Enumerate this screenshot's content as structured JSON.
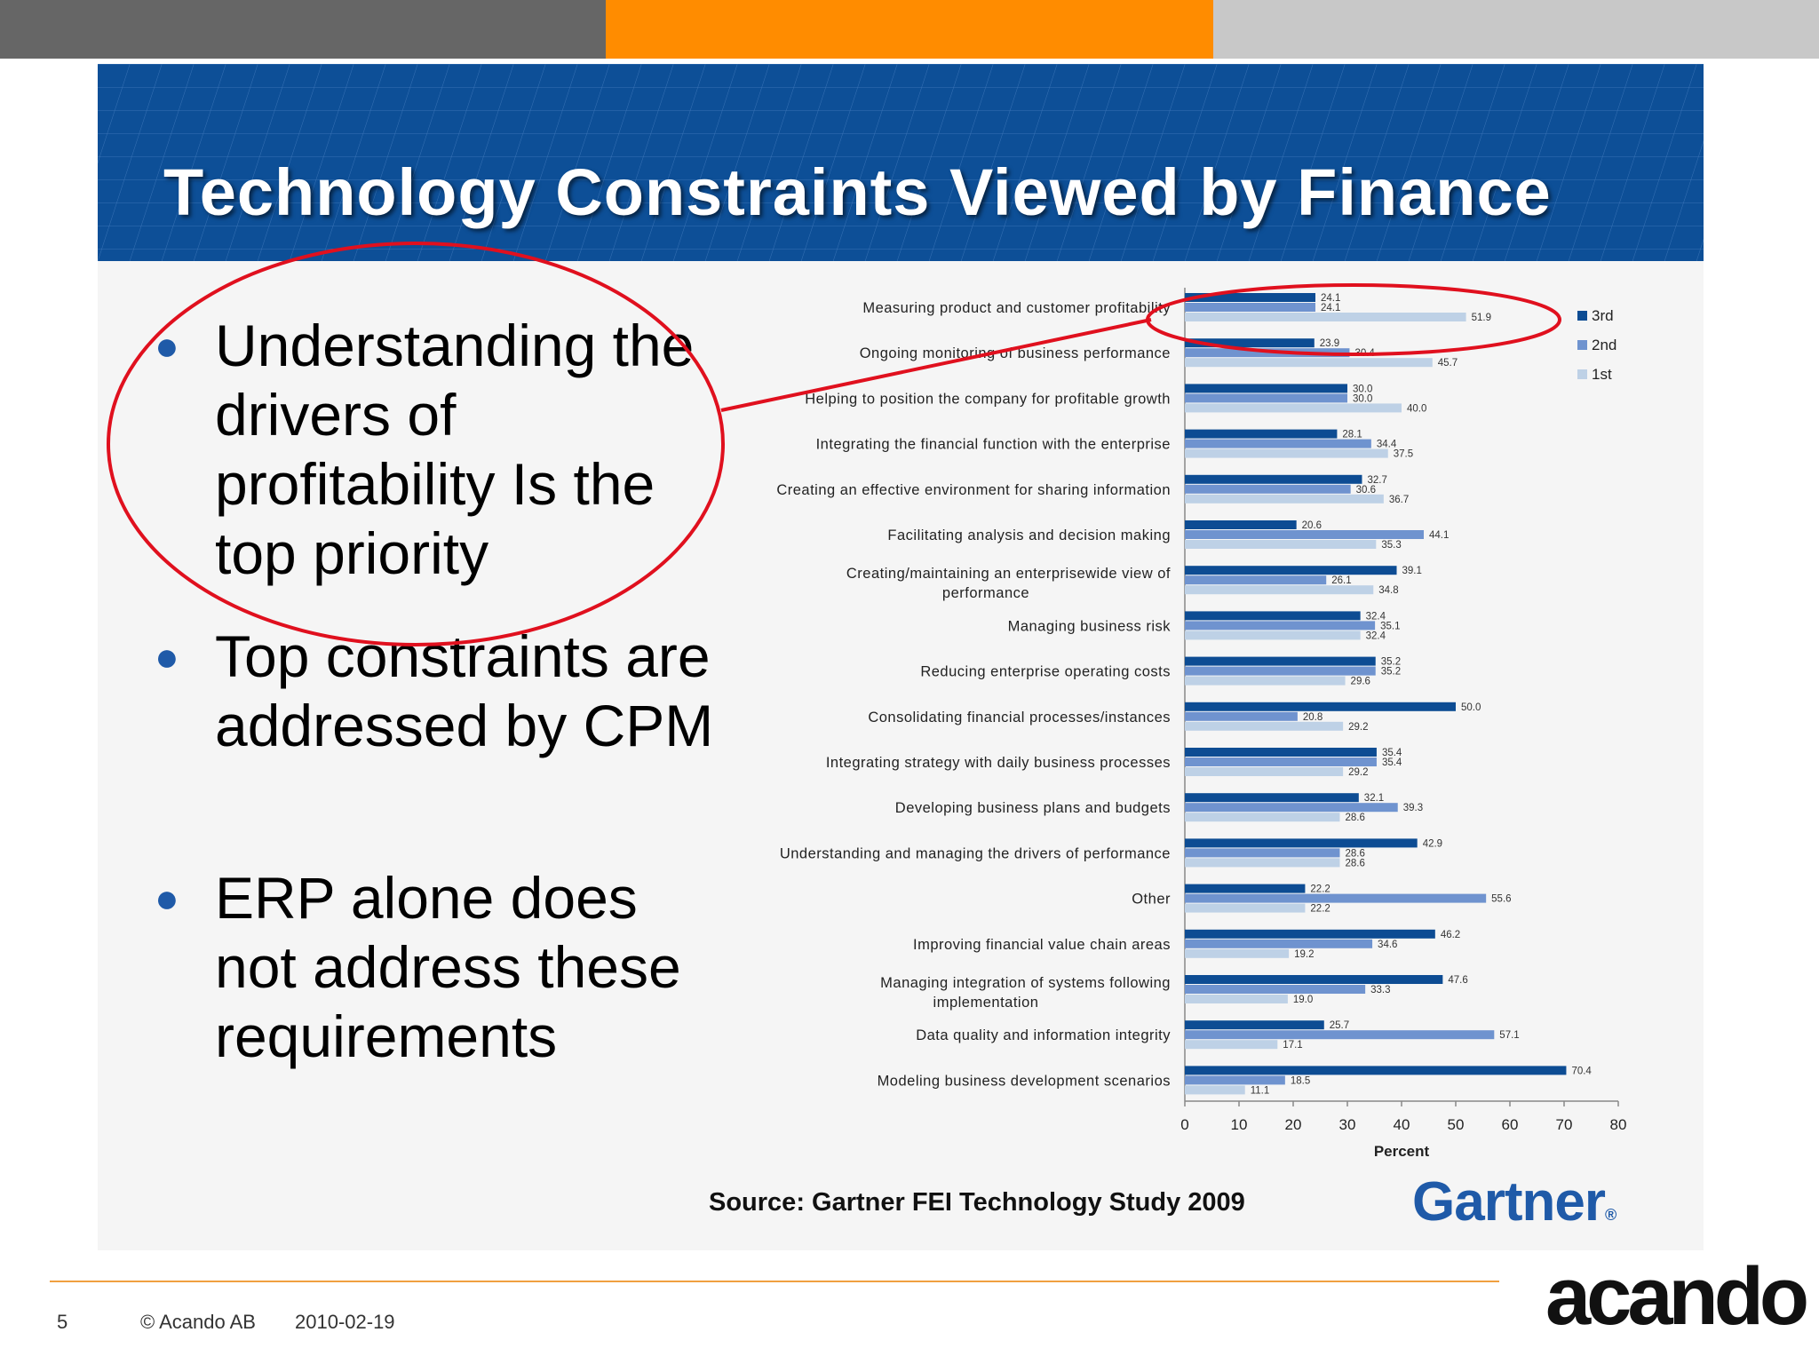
{
  "header": {
    "title": "Technology Constraints Viewed by Finance"
  },
  "bullets": [
    "Understanding the drivers of profitability Is the top priority",
    "Top constraints are addressed by CPM",
    "ERP alone does not address these requirements"
  ],
  "colors": {
    "third": "#0d4c93",
    "second": "#6f93cf",
    "first": "#bed1e6",
    "highlight": "#e0101e",
    "header": "#0d4f97",
    "accent": "#ff8c00"
  },
  "chart_data": {
    "type": "bar",
    "orientation": "horizontal",
    "xlabel": "Percent",
    "xlim": [
      0,
      80
    ],
    "xticks": [
      0,
      10,
      20,
      30,
      40,
      50,
      60,
      70,
      80
    ],
    "legend": [
      "3rd",
      "2nd",
      "1st"
    ],
    "categories": [
      [
        "Measuring product and customer profitability"
      ],
      [
        "Ongoing monitoring of business performance"
      ],
      [
        "Helping to position the company for profitable growth"
      ],
      [
        "Integrating the financial function with the enterprise"
      ],
      [
        "Creating an effective environment for sharing information"
      ],
      [
        "Facilitating analysis and decision making"
      ],
      [
        "Creating/maintaining an enterprisewide view of",
        "performance"
      ],
      [
        "Managing business risk"
      ],
      [
        "Reducing enterprise operating costs"
      ],
      [
        "Consolidating financial processes/instances"
      ],
      [
        "Integrating strategy with daily business processes"
      ],
      [
        "Developing business plans and budgets"
      ],
      [
        "Understanding and managing the drivers of performance"
      ],
      [
        "Other"
      ],
      [
        "Improving financial value chain areas"
      ],
      [
        "Managing integration of systems following",
        "implementation"
      ],
      [
        "Data quality and information integrity"
      ],
      [
        "Modeling business development scenarios"
      ]
    ],
    "series": [
      {
        "name": "3rd",
        "values": [
          24.1,
          23.9,
          30.0,
          28.1,
          32.7,
          20.6,
          39.1,
          32.4,
          35.2,
          50.0,
          35.4,
          32.1,
          42.9,
          22.2,
          46.2,
          47.6,
          25.7,
          70.4
        ]
      },
      {
        "name": "2nd",
        "values": [
          24.1,
          30.4,
          30.0,
          34.4,
          30.6,
          44.1,
          26.1,
          35.1,
          35.2,
          20.8,
          35.4,
          39.3,
          28.6,
          55.6,
          34.6,
          33.3,
          57.1,
          18.5
        ]
      },
      {
        "name": "1st",
        "values": [
          51.9,
          45.7,
          40.0,
          37.5,
          36.7,
          35.3,
          34.8,
          32.4,
          29.6,
          29.2,
          29.2,
          28.6,
          28.6,
          22.2,
          19.2,
          19.0,
          17.1,
          11.1
        ]
      }
    ]
  },
  "source": "Source: Gartner FEI Technology Study 2009",
  "gartner_logo": "Gartner",
  "gartner_mark": "®",
  "footer": {
    "page": "5",
    "copyright": "© Acando AB",
    "date": "2010-02-19",
    "logo": "acando"
  }
}
